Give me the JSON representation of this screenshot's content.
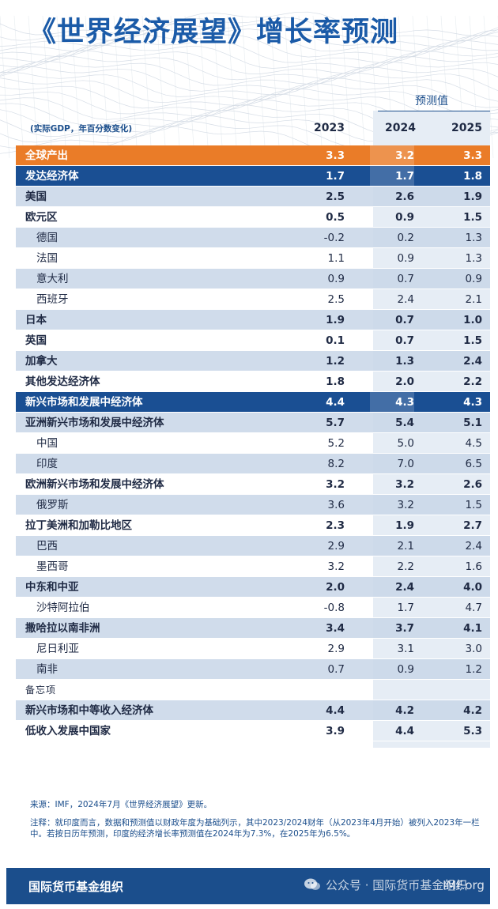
{
  "title": "《世界经济展望》增长率预测",
  "projection_label": "预测值",
  "unit_note": "(实际GDP，年百分数变化)",
  "years": [
    "2023",
    "2024",
    "2025"
  ],
  "rows": [
    {
      "label": "全球产出",
      "v": [
        "3.3",
        "3.2",
        "3.3"
      ]
    },
    {
      "label": "发达经济体",
      "v": [
        "1.7",
        "1.7",
        "1.8"
      ]
    },
    {
      "label": "美国",
      "v": [
        "2.5",
        "2.6",
        "1.9"
      ]
    },
    {
      "label": "欧元区",
      "v": [
        "0.5",
        "0.9",
        "1.5"
      ]
    },
    {
      "label": "德国",
      "v": [
        "-0.2",
        "0.2",
        "1.3"
      ]
    },
    {
      "label": "法国",
      "v": [
        "1.1",
        "0.9",
        "1.3"
      ]
    },
    {
      "label": "意大利",
      "v": [
        "0.9",
        "0.7",
        "0.9"
      ]
    },
    {
      "label": "西班牙",
      "v": [
        "2.5",
        "2.4",
        "2.1"
      ]
    },
    {
      "label": "日本",
      "v": [
        "1.9",
        "0.7",
        "1.0"
      ]
    },
    {
      "label": "英国",
      "v": [
        "0.1",
        "0.7",
        "1.5"
      ]
    },
    {
      "label": "加拿大",
      "v": [
        "1.2",
        "1.3",
        "2.4"
      ]
    },
    {
      "label": "其他发达经济体",
      "v": [
        "1.8",
        "2.0",
        "2.2"
      ]
    },
    {
      "label": "新兴市场和发展中经济体",
      "v": [
        "4.4",
        "4.3",
        "4.3"
      ]
    },
    {
      "label": "亚洲新兴市场和发展中经济体",
      "v": [
        "5.7",
        "5.4",
        "5.1"
      ]
    },
    {
      "label": "中国",
      "v": [
        "5.2",
        "5.0",
        "4.5"
      ]
    },
    {
      "label": "印度",
      "v": [
        "8.2",
        "7.0",
        "6.5"
      ]
    },
    {
      "label": "欧洲新兴市场和发展中经济体",
      "v": [
        "3.2",
        "3.2",
        "2.6"
      ]
    },
    {
      "label": "俄罗斯",
      "v": [
        "3.6",
        "3.2",
        "1.5"
      ]
    },
    {
      "label": "拉丁美洲和加勒比地区",
      "v": [
        "2.3",
        "1.9",
        "2.7"
      ]
    },
    {
      "label": "巴西",
      "v": [
        "2.9",
        "2.1",
        "2.4"
      ]
    },
    {
      "label": "墨西哥",
      "v": [
        "3.2",
        "2.2",
        "1.6"
      ]
    },
    {
      "label": "中东和中亚",
      "v": [
        "2.0",
        "2.4",
        "4.0"
      ]
    },
    {
      "label": "沙特阿拉伯",
      "v": [
        "-0.8",
        "1.7",
        "4.7"
      ]
    },
    {
      "label": "撒哈拉以南非洲",
      "v": [
        "3.4",
        "3.7",
        "4.1"
      ]
    },
    {
      "label": "尼日利亚",
      "v": [
        "2.9",
        "3.1",
        "3.0"
      ]
    },
    {
      "label": "南非",
      "v": [
        "0.7",
        "0.9",
        "1.2"
      ]
    },
    {
      "label": "备忘项",
      "v": [
        "",
        "",
        ""
      ]
    },
    {
      "label": "新兴市场和中等收入经济体",
      "v": [
        "4.4",
        "4.2",
        "4.2"
      ]
    },
    {
      "label": "低收入发展中国家",
      "v": [
        "3.9",
        "4.4",
        "5.3"
      ]
    }
  ],
  "source": "来源：IMF，2024年7月《世界经济展望》更新。",
  "footnote": "注释：就印度而言，数据和预测值以财政年度为基础列示，其中2023/2024财年（从2023年4月开始）被列入2023年一栏中。若按日历年预测，印度的经济增长率预测值在2024年为7.3%，在2025年为6.5%。",
  "footer": {
    "org": "国际货币基金组织",
    "watermark": "公众号 · 国际货币基金组织",
    "logo": "IMF.org"
  },
  "colors": {
    "title": "#1b5ba8",
    "global_row": "#ea7c28",
    "group_row": "#1a4f93",
    "shaded_row": "#c8d6e8",
    "footer": "#1b4e8c"
  }
}
